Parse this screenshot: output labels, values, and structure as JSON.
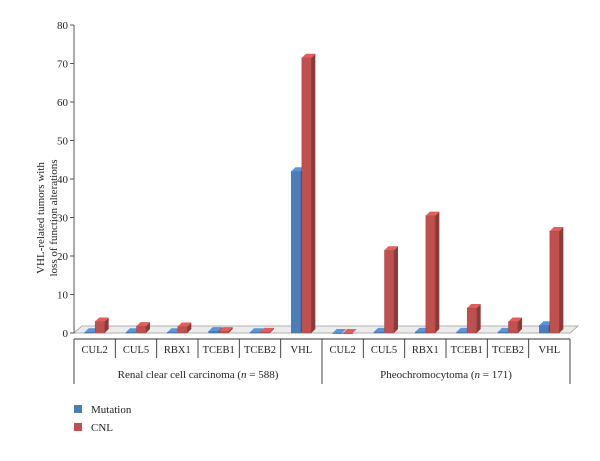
{
  "chart_data": {
    "type": "bar",
    "title": "",
    "ylabel_lines": [
      "VHL-related tumors with",
      "loss of function alterations"
    ],
    "ylim": [
      0,
      80
    ],
    "yticks": [
      0,
      10,
      20,
      30,
      40,
      50,
      60,
      70,
      80
    ],
    "groups": [
      {
        "label_prefix": "Renal clear cell carcinoma (",
        "label_n": "n",
        "label_suffix": " = 588)",
        "categories": [
          "CUL2",
          "CUL5",
          "RBX1",
          "TCEB1",
          "TCEB2",
          "VHL"
        ]
      },
      {
        "label_prefix": "Pheochromocytoma (",
        "label_n": "n",
        "label_suffix": " = 171)",
        "categories": [
          "CUL2",
          "CUL5",
          "RBX1",
          "TCEB1",
          "TCEB2",
          "VHL"
        ]
      }
    ],
    "series": [
      {
        "name": "Mutation",
        "color": "#4a7ebb",
        "values": [
          0.2,
          0.2,
          0.2,
          0.5,
          0.2,
          42,
          0,
          0.3,
          0.3,
          0.3,
          0.3,
          2
        ]
      },
      {
        "name": "CNL",
        "color": "#c0504d",
        "values": [
          3,
          1.8,
          1.7,
          0.5,
          0.3,
          71.5,
          0,
          21.5,
          30.5,
          6.5,
          3,
          26.5
        ]
      }
    ],
    "legend_position": "bottom-left",
    "grid": false
  }
}
